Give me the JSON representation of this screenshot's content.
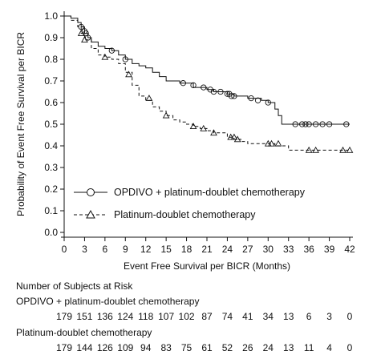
{
  "chart_data": {
    "type": "line",
    "title": "",
    "xlabel": "Event Free Survival per BICR (Months)",
    "ylabel": "Probability of Event Free Survival per BICR",
    "xlim": [
      0,
      42
    ],
    "ylim": [
      0.0,
      1.0
    ],
    "xticks": [
      0,
      3,
      6,
      9,
      12,
      15,
      18,
      21,
      24,
      27,
      30,
      33,
      36,
      39,
      42
    ],
    "yticks": [
      0.0,
      0.1,
      0.2,
      0.3,
      0.4,
      0.5,
      0.6,
      0.7,
      0.8,
      0.9,
      1.0
    ],
    "ytick_labels": [
      "0.0",
      "0.1",
      "0.2",
      "0.3",
      "0.4",
      "0.5",
      "0.6",
      "0.7",
      "0.8",
      "0.9",
      "1.0"
    ],
    "grid": false,
    "legend_position": "bottom-left",
    "series": [
      {
        "name": "OPDIVO + platinum-doublet chemotherapy",
        "marker": "circle",
        "line_style": "solid",
        "x": [
          0,
          1,
          2,
          2.5,
          3,
          3.5,
          4,
          5,
          6,
          7,
          8,
          9,
          10,
          11,
          12,
          13,
          14,
          15,
          17,
          19,
          21,
          22,
          24,
          25,
          27,
          29,
          30,
          31,
          31.5,
          32,
          42
        ],
        "y": [
          1.0,
          0.99,
          0.97,
          0.95,
          0.92,
          0.9,
          0.88,
          0.86,
          0.85,
          0.84,
          0.82,
          0.8,
          0.78,
          0.77,
          0.76,
          0.74,
          0.72,
          0.7,
          0.69,
          0.67,
          0.66,
          0.65,
          0.64,
          0.63,
          0.62,
          0.61,
          0.6,
          0.57,
          0.54,
          0.5,
          0.5
        ],
        "censor_x": [
          2.5,
          3,
          3.2,
          3.5,
          7,
          9,
          17.5,
          19,
          20.5,
          21.5,
          22,
          23,
          24,
          24.3,
          24.6,
          25,
          27.5,
          28.5,
          30,
          34,
          35,
          35.5,
          36,
          37,
          38,
          39,
          41.5
        ],
        "censor_y": [
          0.95,
          0.93,
          0.92,
          0.9,
          0.84,
          0.8,
          0.69,
          0.68,
          0.67,
          0.66,
          0.65,
          0.65,
          0.64,
          0.64,
          0.63,
          0.63,
          0.62,
          0.61,
          0.6,
          0.5,
          0.5,
          0.5,
          0.5,
          0.5,
          0.5,
          0.5,
          0.5
        ]
      },
      {
        "name": "Platinum-doublet chemotherapy",
        "marker": "triangle",
        "line_style": "dashed",
        "x": [
          0,
          1,
          2,
          2.5,
          3,
          4,
          5,
          6,
          7,
          8,
          9,
          10,
          11,
          12,
          13,
          14,
          15,
          16,
          17,
          18,
          19,
          20,
          21,
          22,
          24,
          25,
          26,
          27,
          29,
          31,
          33,
          42
        ],
        "y": [
          1.0,
          0.98,
          0.95,
          0.92,
          0.89,
          0.85,
          0.82,
          0.81,
          0.8,
          0.78,
          0.74,
          0.68,
          0.63,
          0.61,
          0.58,
          0.56,
          0.54,
          0.52,
          0.51,
          0.5,
          0.49,
          0.48,
          0.47,
          0.46,
          0.44,
          0.43,
          0.42,
          0.41,
          0.41,
          0.4,
          0.38,
          0.38
        ],
        "censor_x": [
          2.5,
          3,
          6,
          9.5,
          12.5,
          15,
          19,
          20.5,
          22,
          24.5,
          25,
          25.5,
          30,
          30.5,
          31.5,
          36,
          37,
          41,
          42
        ],
        "censor_y": [
          0.92,
          0.89,
          0.81,
          0.73,
          0.62,
          0.54,
          0.49,
          0.48,
          0.46,
          0.44,
          0.44,
          0.43,
          0.41,
          0.41,
          0.41,
          0.38,
          0.38,
          0.38,
          0.38
        ]
      }
    ]
  },
  "risk_table": {
    "title": "Number of Subjects at Risk",
    "rows": [
      {
        "label": "OPDIVO + platinum-doublet chemotherapy",
        "values": [
          "179",
          "151",
          "136",
          "124",
          "118",
          "107",
          "102",
          "87",
          "74",
          "41",
          "34",
          "13",
          "6",
          "3",
          "0"
        ]
      },
      {
        "label": "Platinum-doublet chemotherapy",
        "values": [
          "179",
          "144",
          "126",
          "109",
          "94",
          "83",
          "75",
          "61",
          "52",
          "26",
          "24",
          "13",
          "11",
          "4",
          "0"
        ]
      }
    ]
  }
}
